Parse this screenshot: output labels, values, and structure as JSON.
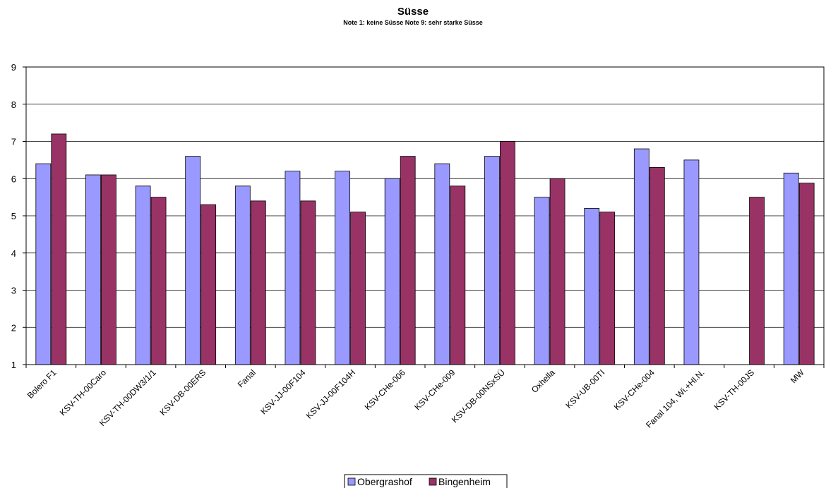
{
  "chart_data": {
    "type": "bar",
    "title": "Süsse",
    "subtitle": "Note 1: keine Süsse Note 9: sehr starke Süsse",
    "xlabel": "",
    "ylabel": "",
    "ylim": [
      1,
      9
    ],
    "yticks": [
      "1",
      "2",
      "3",
      "4",
      "5",
      "6",
      "7",
      "8",
      "9"
    ],
    "grid": true,
    "legend_position": "bottom",
    "categories": [
      "Bolero F1",
      "KSV-TH-00Caro",
      "KSV-TH-00DW3/1/1",
      "KSV-DB-00ERS",
      "Fanal",
      "KSV-JJ-00F104",
      "KSV-JJ-00F104H",
      "KSV-CHe-006",
      "KSV-CHe-009",
      "KSV-DB-00NSxSÜ",
      "Oxhella",
      "KSV-UB-00TI",
      "KSV-CHe-004",
      "Fanal 104, Wi.+Hl.N.",
      "KSV-TH-00JS",
      "MW"
    ],
    "series": [
      {
        "name": "Obergrashof",
        "color": "#9999ff",
        "values": [
          6.4,
          6.1,
          5.8,
          6.6,
          5.8,
          6.2,
          6.2,
          6.0,
          6.4,
          6.6,
          5.5,
          5.2,
          6.8,
          6.5,
          null,
          6.15
        ]
      },
      {
        "name": "Bingenheim",
        "color": "#993366",
        "values": [
          7.2,
          6.1,
          5.5,
          5.3,
          5.4,
          5.4,
          5.1,
          6.6,
          5.8,
          7.0,
          6.0,
          5.1,
          6.3,
          null,
          5.5,
          5.88
        ]
      }
    ]
  }
}
